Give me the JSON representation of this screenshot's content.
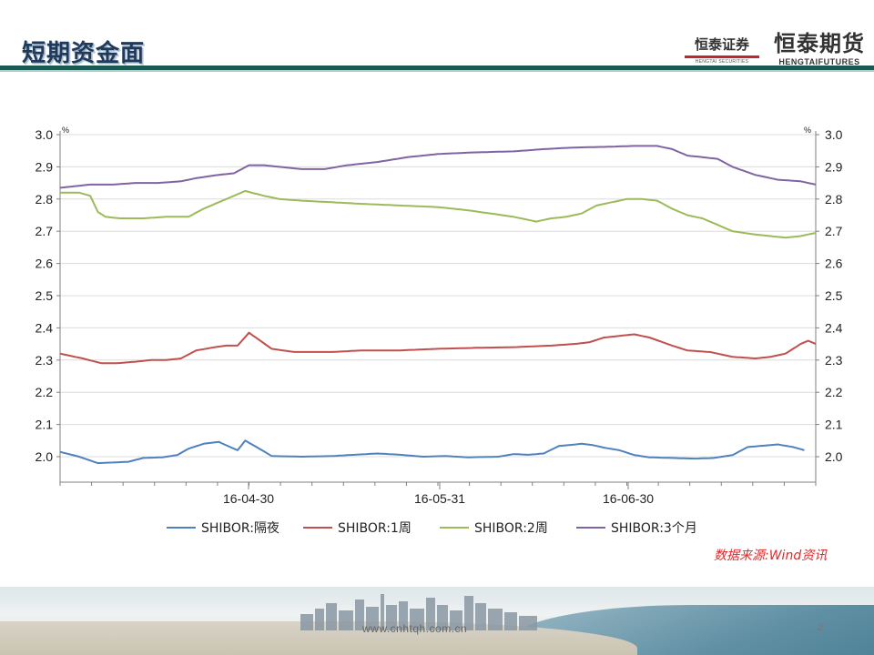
{
  "slide": {
    "title": "短期资金面",
    "source": "数据来源:Wind资讯",
    "url": "www.cnhtqh.com.cn",
    "page_number": "2"
  },
  "logos": {
    "securities_cn": "恒泰证券",
    "securities_en": "HENGTAI SECURITIES",
    "futures_cn": "恒泰期货",
    "futures_en": "HENGTAIFUTURES"
  },
  "colors": {
    "title": "#1f3a5a",
    "header_rule": "#1b5a52",
    "source": "#e3262a",
    "grid": "#d9d9d9",
    "axis": "#7f7f7f"
  },
  "chart_data": {
    "type": "line",
    "y_unit_left": "%",
    "y_unit_right": "%",
    "ylim": [
      1.95,
      3.0
    ],
    "yticks": [
      "2.0",
      "2.1",
      "2.2",
      "2.3",
      "2.4",
      "2.5",
      "2.6",
      "2.7",
      "2.8",
      "2.9",
      "3.0"
    ],
    "grid": true,
    "legend_position": "bottom",
    "x_labels": [
      "16-04-30",
      "16-05-31",
      "16-06-30"
    ],
    "n_points": 121,
    "series": [
      {
        "name": "SHIBOR:隔夜",
        "color": "#4f81bd",
        "anchors": [
          [
            0,
            2.015
          ],
          [
            5,
            2.0
          ],
          [
            10,
            1.98
          ],
          [
            14,
            1.982
          ],
          [
            18,
            1.984
          ],
          [
            22,
            1.996
          ],
          [
            27,
            1.998
          ],
          [
            31,
            2.005
          ],
          [
            34,
            2.025
          ],
          [
            38,
            2.04
          ],
          [
            42,
            2.046
          ],
          [
            45,
            2.03
          ],
          [
            47,
            2.02
          ],
          [
            49,
            2.05
          ],
          [
            52,
            2.03
          ],
          [
            56,
            2.002
          ],
          [
            64,
            2.0
          ],
          [
            72,
            2.002
          ],
          [
            78,
            2.006
          ],
          [
            84,
            2.01
          ],
          [
            90,
            2.006
          ],
          [
            96,
            2.0
          ],
          [
            102,
            2.002
          ],
          [
            108,
            1.998
          ],
          [
            116,
            2.0
          ],
          [
            120,
            2.008
          ],
          [
            124,
            2.006
          ],
          [
            128,
            2.01
          ],
          [
            132,
            2.033
          ],
          [
            138,
            2.04
          ],
          [
            141,
            2.036
          ],
          [
            144,
            2.028
          ],
          [
            148,
            2.02
          ],
          [
            152,
            2.005
          ],
          [
            156,
            1.998
          ],
          [
            162,
            1.996
          ],
          [
            168,
            1.994
          ],
          [
            173,
            1.996
          ],
          [
            178,
            2.005
          ],
          [
            182,
            2.03
          ],
          [
            186,
            2.034
          ],
          [
            190,
            2.038
          ],
          [
            194,
            2.03
          ],
          [
            197,
            2.02
          ]
        ]
      },
      {
        "name": "SHIBOR:1周",
        "color": "#c0504d",
        "anchors": [
          [
            0,
            2.32
          ],
          [
            6,
            2.305
          ],
          [
            11,
            2.29
          ],
          [
            15,
            2.29
          ],
          [
            20,
            2.295
          ],
          [
            24,
            2.3
          ],
          [
            28,
            2.3
          ],
          [
            32,
            2.305
          ],
          [
            36,
            2.33
          ],
          [
            41,
            2.34
          ],
          [
            44,
            2.345
          ],
          [
            47,
            2.345
          ],
          [
            50,
            2.385
          ],
          [
            53,
            2.36
          ],
          [
            56,
            2.335
          ],
          [
            62,
            2.325
          ],
          [
            72,
            2.325
          ],
          [
            80,
            2.33
          ],
          [
            90,
            2.33
          ],
          [
            100,
            2.335
          ],
          [
            110,
            2.338
          ],
          [
            120,
            2.34
          ],
          [
            130,
            2.345
          ],
          [
            136,
            2.35
          ],
          [
            140,
            2.355
          ],
          [
            144,
            2.37
          ],
          [
            148,
            2.375
          ],
          [
            152,
            2.38
          ],
          [
            156,
            2.37
          ],
          [
            162,
            2.345
          ],
          [
            166,
            2.33
          ],
          [
            172,
            2.325
          ],
          [
            178,
            2.31
          ],
          [
            184,
            2.305
          ],
          [
            188,
            2.31
          ],
          [
            192,
            2.32
          ],
          [
            196,
            2.35
          ],
          [
            198,
            2.36
          ],
          [
            200,
            2.35
          ]
        ]
      },
      {
        "name": "SHIBOR:2周",
        "color": "#9bbb59",
        "anchors": [
          [
            0,
            2.82
          ],
          [
            5,
            2.82
          ],
          [
            8,
            2.81
          ],
          [
            10,
            2.76
          ],
          [
            12,
            2.745
          ],
          [
            16,
            2.74
          ],
          [
            22,
            2.74
          ],
          [
            28,
            2.745
          ],
          [
            34,
            2.745
          ],
          [
            38,
            2.77
          ],
          [
            42,
            2.79
          ],
          [
            46,
            2.81
          ],
          [
            49,
            2.825
          ],
          [
            54,
            2.81
          ],
          [
            58,
            2.8
          ],
          [
            64,
            2.795
          ],
          [
            72,
            2.79
          ],
          [
            80,
            2.785
          ],
          [
            90,
            2.78
          ],
          [
            100,
            2.775
          ],
          [
            108,
            2.765
          ],
          [
            114,
            2.755
          ],
          [
            120,
            2.745
          ],
          [
            126,
            2.73
          ],
          [
            130,
            2.74
          ],
          [
            134,
            2.745
          ],
          [
            138,
            2.755
          ],
          [
            142,
            2.78
          ],
          [
            146,
            2.79
          ],
          [
            150,
            2.8
          ],
          [
            154,
            2.8
          ],
          [
            158,
            2.795
          ],
          [
            162,
            2.77
          ],
          [
            166,
            2.75
          ],
          [
            170,
            2.74
          ],
          [
            174,
            2.72
          ],
          [
            178,
            2.7
          ],
          [
            184,
            2.69
          ],
          [
            188,
            2.685
          ],
          [
            192,
            2.68
          ],
          [
            196,
            2.685
          ],
          [
            200,
            2.695
          ]
        ]
      },
      {
        "name": "SHIBOR:3个月",
        "color": "#8064a2",
        "anchors": [
          [
            0,
            2.835
          ],
          [
            4,
            2.84
          ],
          [
            8,
            2.845
          ],
          [
            14,
            2.845
          ],
          [
            20,
            2.85
          ],
          [
            26,
            2.85
          ],
          [
            32,
            2.855
          ],
          [
            36,
            2.865
          ],
          [
            42,
            2.875
          ],
          [
            46,
            2.88
          ],
          [
            50,
            2.905
          ],
          [
            54,
            2.905
          ],
          [
            58,
            2.9
          ],
          [
            64,
            2.893
          ],
          [
            70,
            2.893
          ],
          [
            76,
            2.905
          ],
          [
            84,
            2.915
          ],
          [
            92,
            2.93
          ],
          [
            100,
            2.94
          ],
          [
            110,
            2.945
          ],
          [
            120,
            2.948
          ],
          [
            128,
            2.955
          ],
          [
            136,
            2.96
          ],
          [
            144,
            2.962
          ],
          [
            152,
            2.965
          ],
          [
            158,
            2.965
          ],
          [
            162,
            2.955
          ],
          [
            166,
            2.935
          ],
          [
            170,
            2.93
          ],
          [
            174,
            2.925
          ],
          [
            178,
            2.9
          ],
          [
            184,
            2.875
          ],
          [
            190,
            2.86
          ],
          [
            196,
            2.855
          ],
          [
            200,
            2.845
          ]
        ]
      }
    ]
  }
}
